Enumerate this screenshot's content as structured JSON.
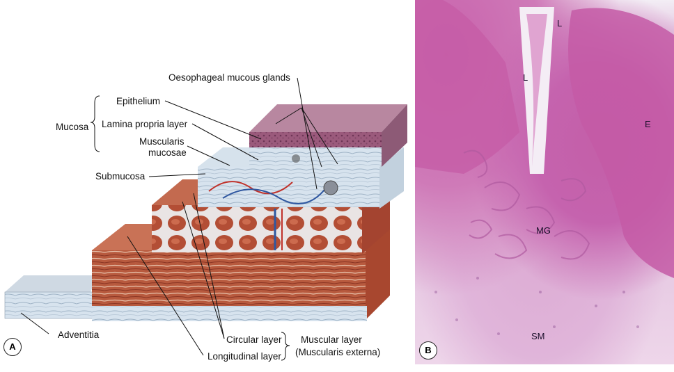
{
  "panel_a": {
    "badge": "A",
    "labels": {
      "oesophageal_glands": "Oesophageal mucous glands",
      "mucosa": "Mucosa",
      "epithelium": "Epithelium",
      "lamina_propria": "Lamina propria layer",
      "muscularis_mucosae_1": "Muscularis",
      "muscularis_mucosae_2": "mucosae",
      "submucosa": "Submucosa",
      "adventitia": "Adventitia",
      "circular_layer": "Circular layer",
      "longitudinal_layer": "Longitudinal layer",
      "muscular_layer_1": "Muscular layer",
      "muscular_layer_2": "(Muscularis externa)"
    }
  },
  "panel_b": {
    "badge": "B",
    "labels": {
      "L_top": "L",
      "L_mid": "L",
      "E": "E",
      "MG": "MG",
      "SM": "SM"
    }
  }
}
